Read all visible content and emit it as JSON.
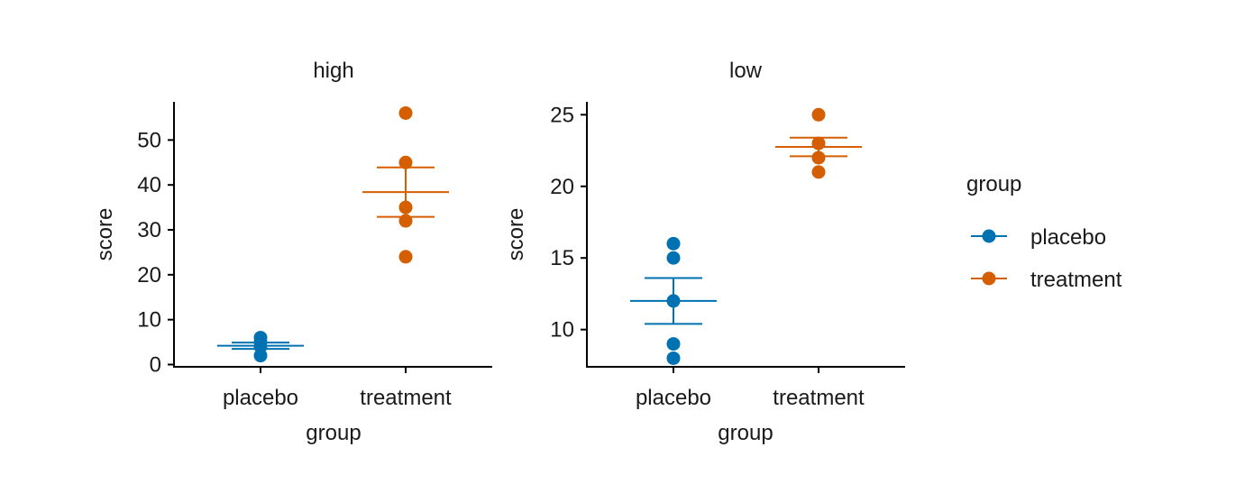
{
  "colors": {
    "placebo": "#0072B2",
    "treatment": "#D55E00",
    "axis": "#000000",
    "background": "#FFFFFF"
  },
  "legend": {
    "title": "group",
    "placement": "right",
    "items": [
      {
        "key": "placebo",
        "label": "placebo"
      },
      {
        "key": "treatment",
        "label": "treatment"
      }
    ]
  },
  "chart_data": [
    {
      "type": "scatter",
      "facet": "high",
      "xlabel": "group",
      "ylabel": "score",
      "categories": [
        "placebo",
        "treatment"
      ],
      "ylim": [
        -0.5,
        58.5
      ],
      "yticks": [
        0,
        10,
        20,
        30,
        40,
        50
      ],
      "grid": false,
      "series": [
        {
          "name": "placebo",
          "points": [
            2,
            4,
            5,
            6
          ],
          "mean": 4.2,
          "lower": 3.5,
          "upper": 4.9
        },
        {
          "name": "treatment",
          "points": [
            24,
            32,
            35,
            45,
            56
          ],
          "mean": 38.4,
          "lower": 32.9,
          "upper": 43.9
        }
      ]
    },
    {
      "type": "scatter",
      "facet": "low",
      "xlabel": "group",
      "ylabel": "score",
      "categories": [
        "placebo",
        "treatment"
      ],
      "ylim": [
        7.4,
        25.9
      ],
      "yticks": [
        10,
        15,
        20,
        25
      ],
      "grid": false,
      "series": [
        {
          "name": "placebo",
          "points": [
            8,
            9,
            12,
            15,
            16
          ],
          "mean": 12.0,
          "lower": 10.4,
          "upper": 13.6
        },
        {
          "name": "treatment",
          "points": [
            21,
            22,
            23,
            25
          ],
          "mean": 22.75,
          "lower": 22.1,
          "upper": 23.4
        }
      ]
    }
  ]
}
